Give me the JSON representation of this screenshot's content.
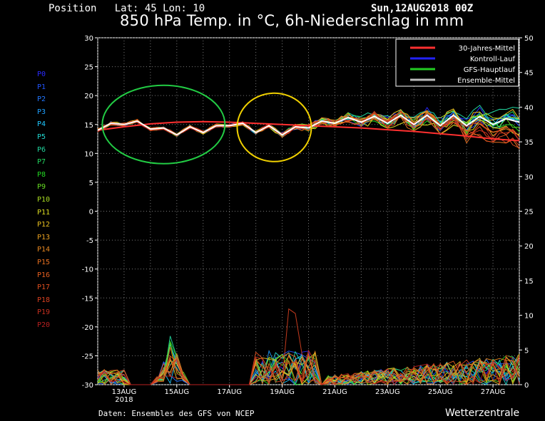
{
  "header": {
    "position": "Position   Lat: 45 Lon: 10",
    "date": "Sun,12AUG2018 00Z",
    "title": "850 hPa Temp. in °C, 6h-Niederschlag in mm"
  },
  "footer": {
    "source": "Daten: Ensembles des GFS von NCEP",
    "brand": "Wetterzentrale"
  },
  "members": [
    {
      "label": "P0",
      "color": "#2a2aff"
    },
    {
      "label": "P1",
      "color": "#2255ff"
    },
    {
      "label": "P2",
      "color": "#2277ff"
    },
    {
      "label": "P3",
      "color": "#1fa0ff"
    },
    {
      "label": "P4",
      "color": "#1fc8ff"
    },
    {
      "label": "P5",
      "color": "#22d8d0"
    },
    {
      "label": "P6",
      "color": "#22d8a0"
    },
    {
      "label": "P7",
      "color": "#22d860"
    },
    {
      "label": "P8",
      "color": "#22d822"
    },
    {
      "label": "P9",
      "color": "#66dd22"
    },
    {
      "label": "P10",
      "color": "#aadd22"
    },
    {
      "label": "P11",
      "color": "#dddd22"
    },
    {
      "label": "P12",
      "color": "#e8c020"
    },
    {
      "label": "P13",
      "color": "#e8a020"
    },
    {
      "label": "P14",
      "color": "#e88820"
    },
    {
      "label": "P15",
      "color": "#e87020"
    },
    {
      "label": "P16",
      "color": "#e86020"
    },
    {
      "label": "P17",
      "color": "#e05020"
    },
    {
      "label": "P18",
      "color": "#d84020"
    },
    {
      "label": "P19",
      "color": "#c83020"
    },
    {
      "label": "P20",
      "color": "#b82020"
    }
  ],
  "chart_data": {
    "type": "line",
    "title": "850 hPa Temp. in °C, 6h-Niederschlag in mm",
    "x_tick_labels": [
      "13AUG",
      "15AUG",
      "17AUG",
      "19AUG",
      "21AUG",
      "23AUG",
      "25AUG",
      "27AUG"
    ],
    "x_year_label": "2018",
    "x_range_days": [
      12.0,
      28.0
    ],
    "y_left_range": [
      -30,
      30
    ],
    "y_left_ticks": [
      -30,
      -25,
      -20,
      -15,
      -10,
      -5,
      0,
      5,
      10,
      15,
      20,
      25,
      30
    ],
    "y_right_range": [
      0,
      50
    ],
    "y_right_ticks": [
      0,
      5,
      10,
      15,
      20,
      25,
      30,
      35,
      40,
      45,
      50
    ],
    "grid": true,
    "legend_position": "top-right",
    "legend": [
      {
        "name": "30-Jahres-Mittel",
        "color": "#ff3030"
      },
      {
        "name": "Kontroll-Lauf",
        "color": "#2222ff"
      },
      {
        "name": "GFS-Hauptlauf",
        "color": "#22cc22"
      },
      {
        "name": "Ensemble-Mittel",
        "color": "#bbbbbb"
      }
    ],
    "climate_mean": {
      "x": [
        12.0,
        13.0,
        14.0,
        15.0,
        16.0,
        17.0,
        18.0,
        19.0,
        20.0,
        21.0,
        22.0,
        23.0,
        24.0,
        25.0,
        26.0,
        27.0,
        28.0
      ],
      "y": [
        14.0,
        14.6,
        15.1,
        15.4,
        15.5,
        15.4,
        15.2,
        15.0,
        14.8,
        14.6,
        14.4,
        14.1,
        13.8,
        13.4,
        13.0,
        12.5,
        12.2
      ]
    },
    "ensemble_mean_temp": {
      "x": [
        12.0,
        12.5,
        13.0,
        13.5,
        14.0,
        14.5,
        15.0,
        15.5,
        16.0,
        16.5,
        17.0,
        17.5,
        18.0,
        18.5,
        19.0,
        19.5,
        20.0,
        20.5,
        21.0,
        21.5,
        22.0,
        22.5,
        23.0,
        23.5,
        24.0,
        24.5,
        25.0,
        25.5,
        26.0,
        26.5,
        27.0,
        27.5,
        28.0
      ],
      "y": [
        14.0,
        15.2,
        15.0,
        15.6,
        14.2,
        14.4,
        13.2,
        14.6,
        13.6,
        14.8,
        14.8,
        15.2,
        13.6,
        14.8,
        13.2,
        14.6,
        14.4,
        15.6,
        15.2,
        16.2,
        15.4,
        16.4,
        15.2,
        16.6,
        15.0,
        16.6,
        14.8,
        16.6,
        14.8,
        16.4,
        15.0,
        16.0,
        15.4
      ]
    },
    "temperature_spread_c": 1.5,
    "precipitation_peak_mm": {
      "x": [
        14.8,
        18.5,
        19.3
      ],
      "y": [
        6.5,
        7.5,
        10.5
      ]
    },
    "annotations": [
      {
        "shape": "ellipse",
        "color": "#22cc44",
        "center_x_day": 14.5,
        "center_y_c": 15.0
      },
      {
        "shape": "ellipse",
        "color": "#f0d000",
        "center_x_day": 18.7,
        "center_y_c": 14.5
      }
    ]
  }
}
